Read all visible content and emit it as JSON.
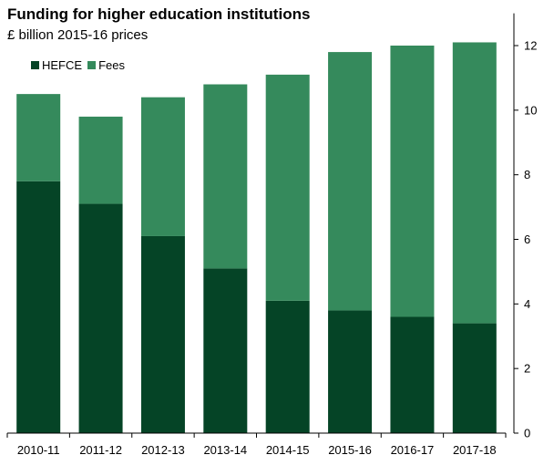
{
  "chart_data": {
    "type": "bar",
    "stacked": true,
    "title": "Funding for higher education institutions",
    "subtitle": "£ billion 2015-16 prices",
    "xlabel": "",
    "ylabel": "",
    "categories": [
      "2010-11",
      "2011-12",
      "2012-13",
      "2013-14",
      "2014-15",
      "2015-16",
      "2016-17",
      "2017-18"
    ],
    "series": [
      {
        "name": "HEFCE",
        "color": "#054426",
        "values": [
          7.8,
          7.1,
          6.1,
          5.1,
          4.1,
          3.8,
          3.6,
          3.4
        ]
      },
      {
        "name": "Fees",
        "color": "#358a5c",
        "values": [
          2.7,
          2.7,
          4.3,
          5.7,
          7.0,
          8.0,
          8.4,
          8.7
        ]
      }
    ],
    "yticks": [
      "0",
      "2",
      "4",
      "6",
      "8",
      "10",
      "12"
    ],
    "ylim": [
      0,
      13
    ],
    "yaxis_position": "right",
    "grid": false,
    "legend_position": "top-left"
  }
}
